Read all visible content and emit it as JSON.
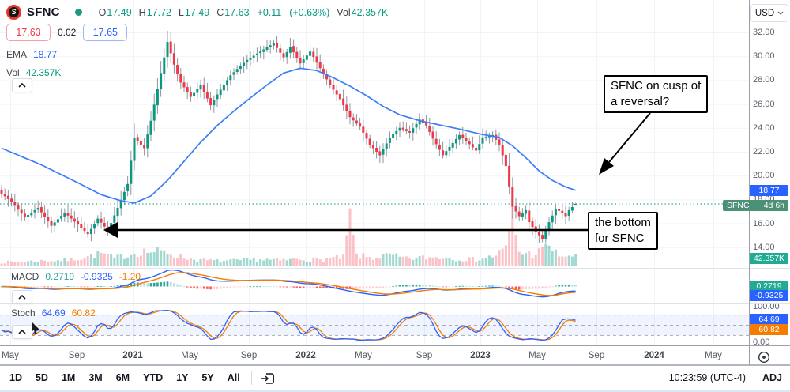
{
  "header": {
    "symbol": "SFNC",
    "logo_letter": "S",
    "ohlc": {
      "open_label": "O",
      "open": "17.49",
      "high_label": "H",
      "high": "17.72",
      "low_label": "L",
      "low": "17.49",
      "close_label": "C",
      "close": "17.63",
      "change": "+0.11",
      "change_pct": "(+0.63%)",
      "volume_label": "Vol",
      "volume": "42.357K"
    },
    "bid": "17.63",
    "spread": "0.02",
    "ask": "17.65",
    "ema_label": "EMA",
    "ema_value": "18.77",
    "vol_label": "Vol",
    "vol_value": "42.357K"
  },
  "panes": {
    "macd": {
      "label": "MACD",
      "hist_value": "0.2719",
      "macd_value": "-0.9325",
      "signal_value": "-1.20"
    },
    "stoch": {
      "label": "Stoch",
      "k_value": "64.69",
      "d_value": "60.82",
      "upper_tick": "100.00",
      "lower_tick": "0.00"
    }
  },
  "price_axis": {
    "currency": "USD",
    "ticks": [
      "32.00",
      "30.00",
      "28.00",
      "26.00",
      "24.00",
      "22.00",
      "20.00",
      "18.00",
      "16.00",
      "14.00"
    ],
    "ema_badge": "18.77",
    "countdown_symbol": "SFNC",
    "countdown_time": "4d 6h",
    "volume_badge": "42.357K",
    "macd_hist_badge": "0.2719",
    "macd_line_badge": "-0.9325",
    "stoch_k_badge": "64.69",
    "stoch_d_badge": "60.82"
  },
  "time_axis": {
    "labels": [
      {
        "text": "May",
        "bold": false
      },
      {
        "text": "Sep",
        "bold": false
      },
      {
        "text": "2021",
        "bold": true
      },
      {
        "text": "May",
        "bold": false
      },
      {
        "text": "Sep",
        "bold": false
      },
      {
        "text": "2022",
        "bold": true
      },
      {
        "text": "May",
        "bold": false
      },
      {
        "text": "Sep",
        "bold": false
      },
      {
        "text": "2023",
        "bold": true
      },
      {
        "text": "May",
        "bold": false
      },
      {
        "text": "Sep",
        "bold": false
      },
      {
        "text": "2024",
        "bold": true
      },
      {
        "text": "May",
        "bold": false
      }
    ]
  },
  "annotations": {
    "reversal_note": {
      "line1": "SFNC on cusp of",
      "line2": "a reversal?"
    },
    "bottom_note": {
      "line1": "the bottom",
      "line2": "for SFNC"
    }
  },
  "toolbar": {
    "ranges": [
      "1D",
      "5D",
      "1M",
      "3M",
      "6M",
      "YTD",
      "1Y",
      "5Y",
      "All"
    ],
    "clock": "10:23:59 (UTC-4)",
    "adjust_label": "ADJ"
  },
  "colors": {
    "up": "#089981",
    "down": "#f23645",
    "wick": "#8f949e",
    "vol_up": "rgba(8,153,129,0.38)",
    "vol_down": "rgba(242,54,69,0.30)",
    "ema": "#3b7df7",
    "macd_line": "#2962ff",
    "signal_line": "#f57c00",
    "stoch_k": "#2962ff",
    "stoch_d": "#f57c00",
    "hist_up_grow": "#26a69a",
    "hist_up_fall": "#b2dfdb",
    "hist_dn_grow": "#fccbcd",
    "hist_dn_fall": "#ff5252",
    "badge_blue": "#2962ff",
    "badge_teal": "#22ab94",
    "badge_green": "#4c9076",
    "badge_orange": "#f57c00",
    "grid": "#f0f3fa",
    "status_dot": "#1e9a80",
    "price_line": "#089981"
  },
  "chart_data": {
    "type": "candlestick",
    "symbol": "SFNC",
    "interval": "1W",
    "candle_count": 174,
    "price_axis_ticks": [
      32,
      30,
      28,
      26,
      24,
      22,
      20,
      18,
      16,
      14
    ],
    "time_range_shown": [
      "2020-04",
      "2024-06"
    ],
    "last_candle": {
      "open": 17.49,
      "high": 17.72,
      "low": 17.49,
      "close": 17.63,
      "volume_k": 42.357
    },
    "current_price_line": 17.63,
    "ema_last": 18.77,
    "macd_last": {
      "hist": 0.2719,
      "macd": -0.9325,
      "signal": -1.2
    },
    "stoch_last": {
      "k": 64.69,
      "d": 60.82
    },
    "close_keypoints": [
      [
        0,
        18.5
      ],
      [
        3,
        17.8
      ],
      [
        7,
        16.5
      ],
      [
        11,
        17.3
      ],
      [
        15,
        15.8
      ],
      [
        19,
        16.9
      ],
      [
        23,
        15.9
      ],
      [
        26,
        15.1
      ],
      [
        29,
        16.4
      ],
      [
        32,
        15.4
      ],
      [
        35,
        17.3
      ],
      [
        38,
        19.3
      ],
      [
        40,
        23.2
      ],
      [
        43,
        22.3
      ],
      [
        45,
        24.6
      ],
      [
        47,
        27.3
      ],
      [
        50,
        31.2
      ],
      [
        52,
        29.3
      ],
      [
        54,
        27.8
      ],
      [
        57,
        26.6
      ],
      [
        60,
        27.6
      ],
      [
        63,
        25.9
      ],
      [
        65,
        26.8
      ],
      [
        69,
        28.4
      ],
      [
        72,
        29.2
      ],
      [
        74,
        29.7
      ],
      [
        78,
        30.4
      ],
      [
        82,
        31.1
      ],
      [
        85,
        29.9
      ],
      [
        87,
        30.8
      ],
      [
        90,
        29.4
      ],
      [
        93,
        30.4
      ],
      [
        96,
        29.0
      ],
      [
        99,
        27.6
      ],
      [
        102,
        26.4
      ],
      [
        105,
        24.9
      ],
      [
        108,
        24.1
      ],
      [
        111,
        22.6
      ],
      [
        114,
        21.7
      ],
      [
        117,
        23.2
      ],
      [
        120,
        24.0
      ],
      [
        123,
        23.6
      ],
      [
        126,
        24.7
      ],
      [
        128,
        24.2
      ],
      [
        130,
        23.1
      ],
      [
        133,
        21.7
      ],
      [
        135,
        22.4
      ],
      [
        138,
        23.4
      ],
      [
        140,
        22.9
      ],
      [
        143,
        22.1
      ],
      [
        145,
        23.2
      ],
      [
        148,
        23.4
      ],
      [
        150,
        22.6
      ],
      [
        152,
        20.8
      ],
      [
        154,
        17.4
      ],
      [
        156,
        16.6
      ],
      [
        158,
        17.1
      ],
      [
        159,
        16.1
      ],
      [
        161,
        15.3
      ],
      [
        163,
        14.7
      ],
      [
        165,
        16.1
      ],
      [
        167,
        17.2
      ],
      [
        169,
        16.9
      ],
      [
        170,
        16.6
      ],
      [
        171,
        17.1
      ],
      [
        173,
        17.63
      ]
    ],
    "ema_keypoints": [
      [
        0,
        22.3
      ],
      [
        12,
        20.9
      ],
      [
        23,
        19.4
      ],
      [
        30,
        18.4
      ],
      [
        36,
        17.9
      ],
      [
        40,
        17.7
      ],
      [
        45,
        18.3
      ],
      [
        50,
        19.6
      ],
      [
        55,
        21.2
      ],
      [
        60,
        22.8
      ],
      [
        65,
        24.2
      ],
      [
        70,
        25.4
      ],
      [
        74,
        26.3
      ],
      [
        80,
        27.6
      ],
      [
        85,
        28.6
      ],
      [
        90,
        29.0
      ],
      [
        95,
        28.8
      ],
      [
        100,
        28.2
      ],
      [
        105,
        27.5
      ],
      [
        110,
        26.7
      ],
      [
        115,
        25.8
      ],
      [
        120,
        25.1
      ],
      [
        126,
        24.6
      ],
      [
        132,
        24.25
      ],
      [
        138,
        23.9
      ],
      [
        144,
        23.5
      ],
      [
        150,
        23.2
      ],
      [
        154,
        22.5
      ],
      [
        158,
        21.5
      ],
      [
        162,
        20.4
      ],
      [
        166,
        19.6
      ],
      [
        170,
        19.05
      ],
      [
        173,
        18.77
      ]
    ],
    "volume_keypoints": [
      [
        0,
        14
      ],
      [
        10,
        18
      ],
      [
        20,
        22
      ],
      [
        26,
        34
      ],
      [
        30,
        45
      ],
      [
        34,
        28
      ],
      [
        38,
        40
      ],
      [
        42,
        52
      ],
      [
        50,
        48
      ],
      [
        55,
        30
      ],
      [
        60,
        22
      ],
      [
        66,
        18
      ],
      [
        72,
        20
      ],
      [
        78,
        24
      ],
      [
        84,
        20
      ],
      [
        90,
        26
      ],
      [
        96,
        22
      ],
      [
        100,
        28
      ],
      [
        103,
        30
      ],
      [
        105,
        165
      ],
      [
        107,
        36
      ],
      [
        112,
        30
      ],
      [
        117,
        38
      ],
      [
        122,
        26
      ],
      [
        127,
        30
      ],
      [
        133,
        32
      ],
      [
        138,
        26
      ],
      [
        143,
        24
      ],
      [
        148,
        34
      ],
      [
        152,
        60
      ],
      [
        154,
        185
      ],
      [
        156,
        48
      ],
      [
        160,
        42
      ],
      [
        163,
        55
      ],
      [
        165,
        75
      ],
      [
        167,
        45
      ],
      [
        169,
        38
      ],
      [
        171,
        30
      ],
      [
        173,
        42.357
      ]
    ]
  }
}
